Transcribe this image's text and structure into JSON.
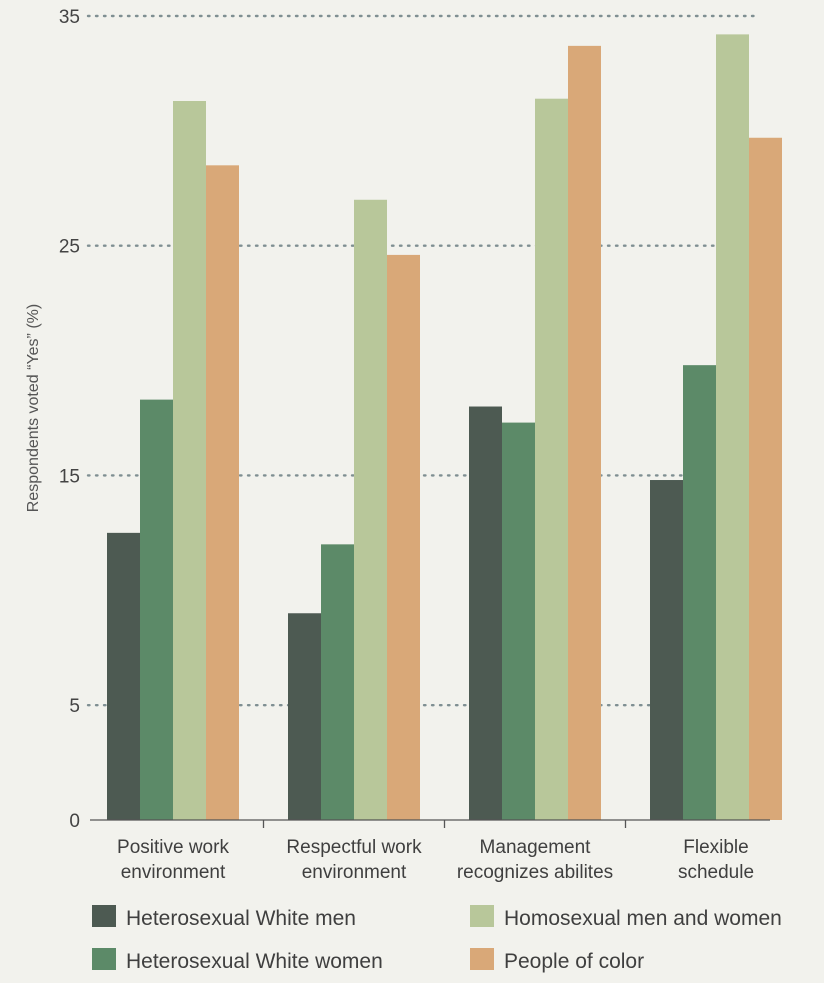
{
  "chart_data": {
    "type": "bar",
    "title": "",
    "xlabel": "",
    "ylabel": "Respondents voted “Yes” (%)",
    "ylim": [
      0,
      35
    ],
    "yticks": [
      "0",
      "5",
      "15",
      "25",
      "35"
    ],
    "grid": "dotted horizontal",
    "legend_position": "bottom",
    "categories": [
      [
        "Positive work",
        "environment"
      ],
      [
        "Respectful work",
        "environment"
      ],
      [
        "Management",
        "recognizes abilites"
      ],
      [
        "Flexible",
        "schedule"
      ]
    ],
    "series": [
      {
        "name": "Heterosexual White men",
        "color": "#4d5a52",
        "values": [
          12.5,
          9,
          18,
          14.8
        ]
      },
      {
        "name": "Heterosexual White women",
        "color": "#5c8a68",
        "values": [
          18.3,
          12,
          17.3,
          19.8
        ]
      },
      {
        "name": "Homosexual men and women",
        "color": "#b8c79a",
        "values": [
          31.3,
          27,
          31.4,
          34.2
        ]
      },
      {
        "name": "People of color",
        "color": "#d9a878",
        "values": [
          28.5,
          24.6,
          33.7,
          29.7
        ]
      }
    ]
  }
}
